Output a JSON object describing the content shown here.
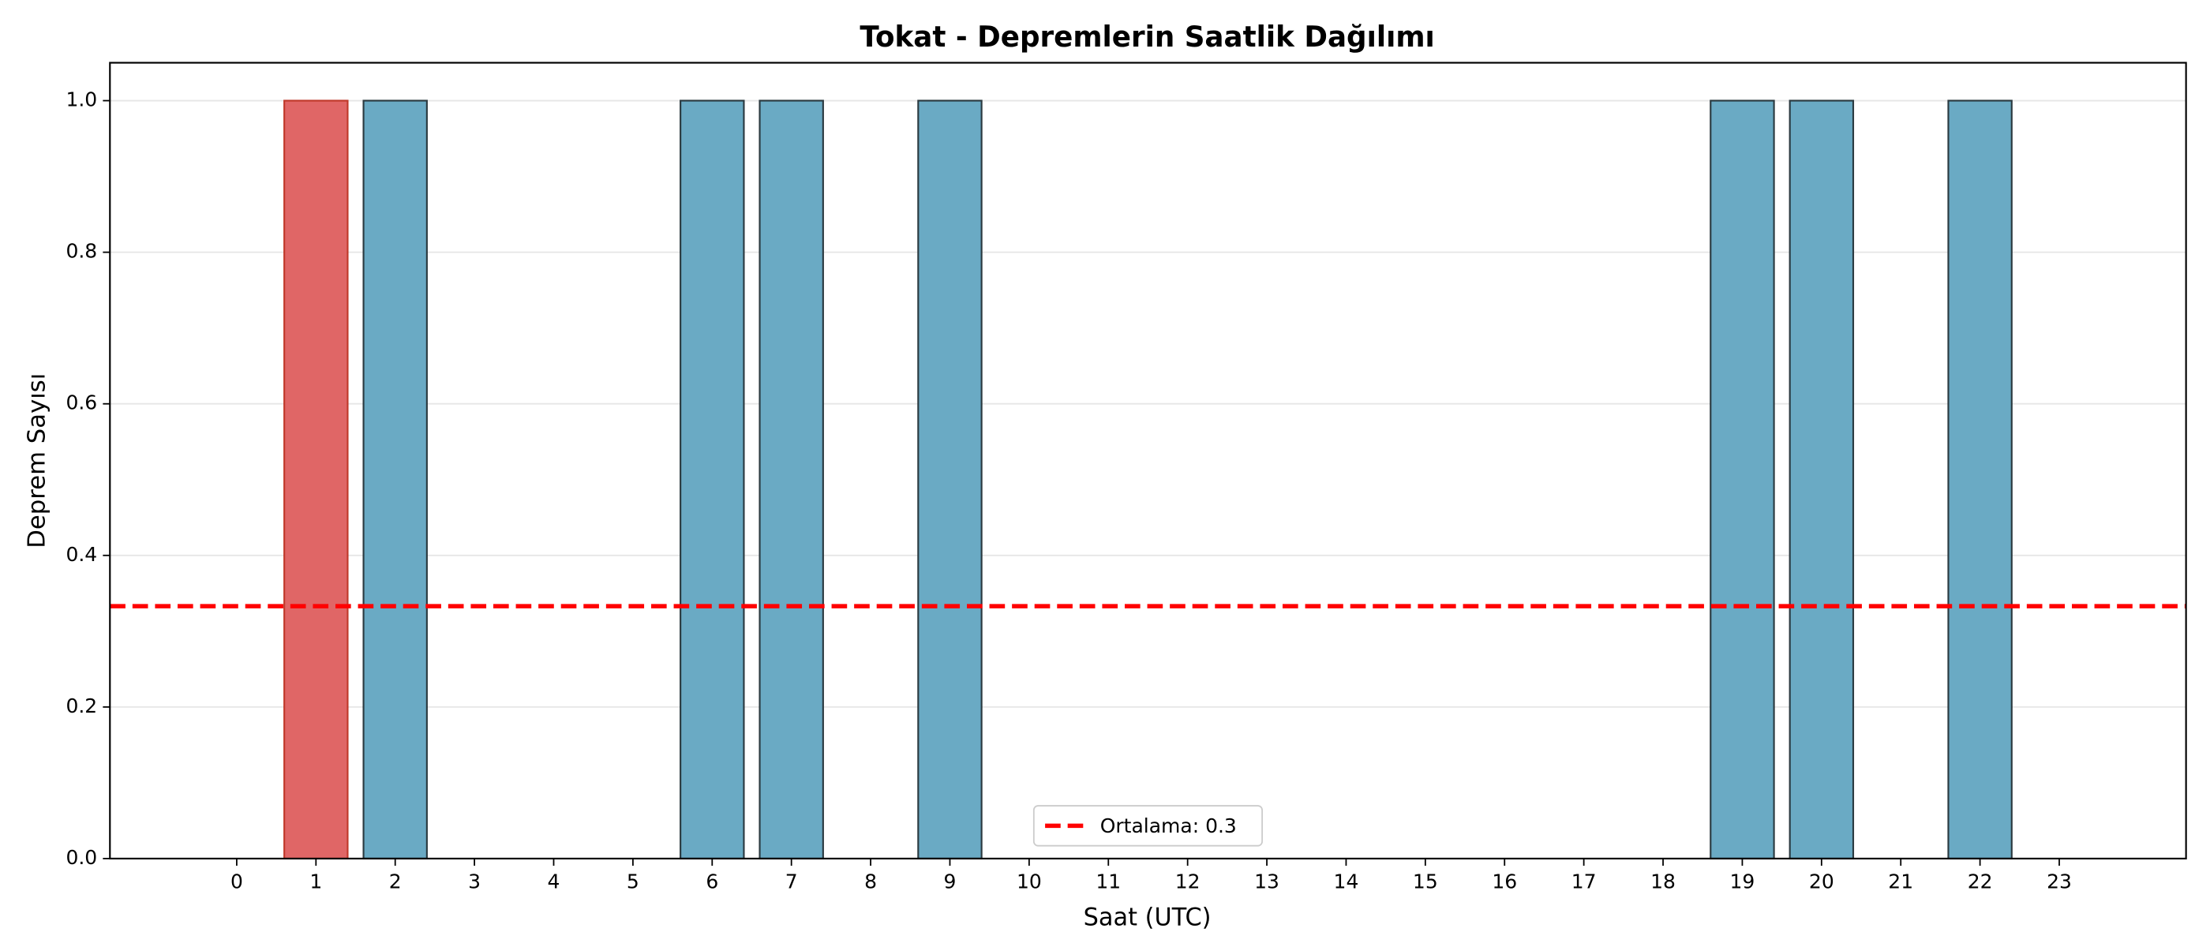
{
  "chart_data": {
    "type": "bar",
    "title": "Tokat - Depremlerin Saatlik Dağılımı",
    "x_label": "Saat (UTC)",
    "y_label": "Deprem Sayısı",
    "x": [
      0,
      1,
      2,
      3,
      4,
      5,
      6,
      7,
      8,
      9,
      10,
      11,
      12,
      13,
      14,
      15,
      16,
      17,
      18,
      19,
      20,
      21,
      22,
      23
    ],
    "values": [
      0,
      1,
      1,
      0,
      0,
      0,
      1,
      1,
      0,
      1,
      0,
      0,
      0,
      0,
      0,
      0,
      0,
      0,
      0,
      1,
      1,
      0,
      1,
      0
    ],
    "colors": [
      "#6aaac4",
      "#e06666",
      "#6aaac4",
      "#6aaac4",
      "#6aaac4",
      "#6aaac4",
      "#6aaac4",
      "#6aaac4",
      "#6aaac4",
      "#6aaac4",
      "#6aaac4",
      "#6aaac4",
      "#6aaac4",
      "#6aaac4",
      "#6aaac4",
      "#6aaac4",
      "#6aaac4",
      "#6aaac4",
      "#6aaac4",
      "#6aaac4",
      "#6aaac4",
      "#6aaac4",
      "#6aaac4",
      "#6aaac4"
    ],
    "xlim": [
      -1.6,
      24.6
    ],
    "xticks": [
      0,
      1,
      2,
      3,
      4,
      5,
      6,
      7,
      8,
      9,
      10,
      11,
      12,
      13,
      14,
      15,
      16,
      17,
      18,
      19,
      20,
      21,
      22,
      23
    ],
    "ylim": [
      0,
      1.05
    ],
    "yticks": [
      {
        "value": 0,
        "label": "0.0"
      },
      0.2,
      0.4,
      0.6,
      0.8,
      {
        "value": 1,
        "label": "1.0"
      }
    ],
    "grid": true,
    "mean_line": {
      "value": 0.333,
      "name": "Ortalama: 0.3",
      "color": "#ff0000"
    },
    "legend": "lower center"
  }
}
